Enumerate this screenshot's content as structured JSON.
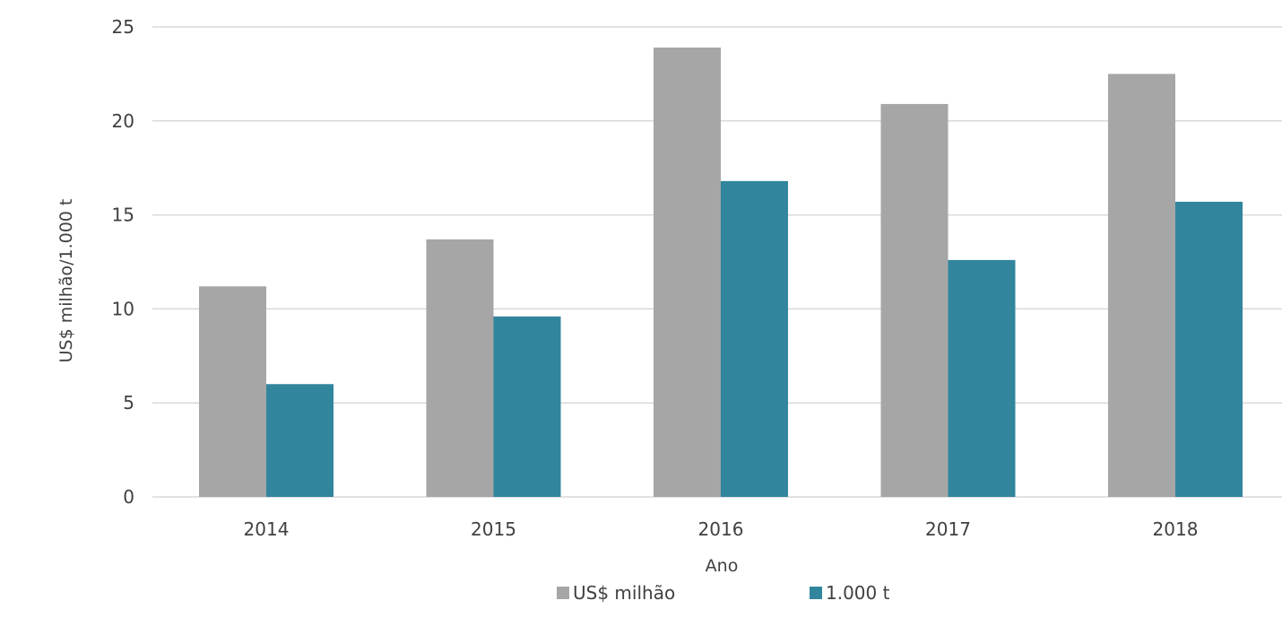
{
  "chart_data": {
    "type": "bar",
    "categories": [
      "2014",
      "2015",
      "2016",
      "2017",
      "2018"
    ],
    "series": [
      {
        "name": "US$ milhão",
        "values": [
          11.2,
          13.7,
          23.9,
          20.9,
          22.5
        ],
        "color": "#a6a6a6"
      },
      {
        "name": "1.000 t",
        "values": [
          6.0,
          9.6,
          16.8,
          12.6,
          15.7
        ],
        "color": "#31859c"
      }
    ],
    "xlabel": "Ano",
    "ylabel": "US$ milhão/1.000 t",
    "ylim": [
      0,
      25
    ],
    "yticks": [
      "0",
      "5",
      "10",
      "15",
      "20",
      "25"
    ],
    "grid": true,
    "legend_position": "bottom",
    "gridline_color": "#d9d9d9"
  }
}
